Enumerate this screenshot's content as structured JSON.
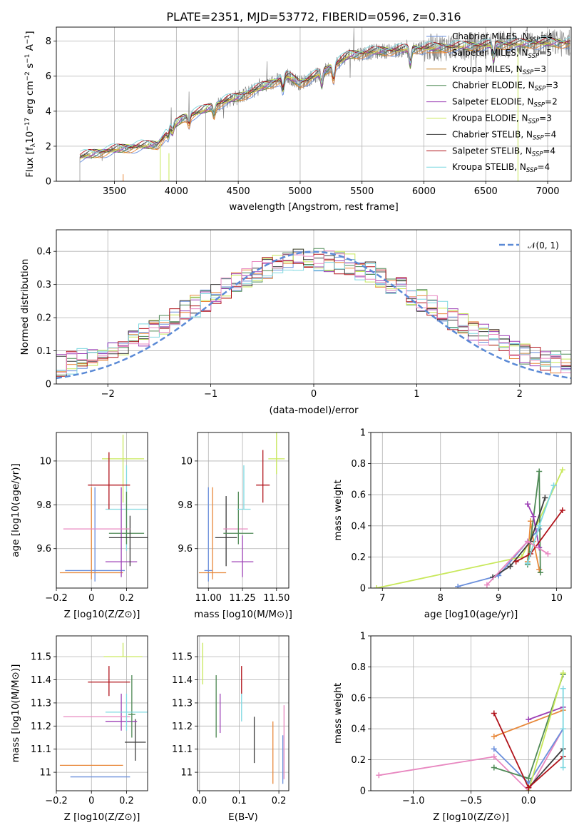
{
  "colors": {
    "Chabrier MILES": "#6a8fdc",
    "Salpeter MILES": "#e8883a",
    "Kroupa MILES": "#c8862e",
    "Chabrier ELODIE": "#4f8a56",
    "Salpeter ELODIE": "#9c3fb5",
    "Kroupa ELODIE": "#c8e85a",
    "Chabrier STELIB": "#3c3c3c",
    "Salpeter STELIB": "#b0121a",
    "Kroupa STELIB": "#7fd8e0",
    "pink": "#e887c0",
    "data": "#777777",
    "gaussian": "#5b8ad6"
  },
  "chart_data": [
    {
      "id": "spectrum",
      "type": "line",
      "title": "PLATE=2351, MJD=53772, FIBERID=0596, z=0.316",
      "xlabel": "wavelength [Angstrom, rest frame]",
      "ylabel": "Flux [f$_\\lambda$10$^{-17}$ erg cm$^{-2}$ s$^{-1}$ A$^{-1}$]",
      "ylabel_parts": [
        "Flux [f",
        "λ",
        "10",
        "−17",
        " erg cm",
        "−2",
        " s",
        "−1",
        " A",
        "−1",
        "]"
      ],
      "xlim": [
        3030,
        7190
      ],
      "ylim": [
        0,
        8.8
      ],
      "xticks": [
        3500,
        4000,
        4500,
        5000,
        5500,
        6000,
        6500,
        7000
      ],
      "yticks": [
        0,
        2,
        4,
        6,
        8
      ],
      "continuum_x": [
        3220,
        3350,
        3500,
        3700,
        3850,
        3950,
        4050,
        4200,
        4300,
        4400,
        4500,
        4700,
        4900,
        5000,
        5200,
        5400,
        5600,
        5800,
        6000,
        6300,
        6600,
        7000
      ],
      "continuum_y": [
        1.4,
        1.6,
        1.8,
        2.0,
        2.1,
        3.0,
        3.6,
        4.0,
        4.3,
        4.6,
        4.8,
        5.4,
        6.0,
        5.6,
        6.3,
        7.2,
        7.4,
        7.5,
        7.6,
        7.7,
        7.8,
        7.9
      ],
      "legend": [
        {
          "label": "Chabrier MILES, N",
          "sub": "SSP",
          "n": "=4",
          "key": "Chabrier MILES"
        },
        {
          "label": "Salpeter MILES, N",
          "sub": "SSP",
          "n": "=5",
          "key": "Salpeter MILES"
        },
        {
          "label": "Kroupa MILES, N",
          "sub": "SSP",
          "n": "=3",
          "key": "Kroupa MILES"
        },
        {
          "label": "Chabrier ELODIE, N",
          "sub": "SSP",
          "n": "=3",
          "key": "Chabrier ELODIE"
        },
        {
          "label": "Salpeter ELODIE, N",
          "sub": "SSP",
          "n": "=2",
          "key": "Salpeter ELODIE"
        },
        {
          "label": "Kroupa ELODIE, N",
          "sub": "SSP",
          "n": "=3",
          "key": "Kroupa ELODIE"
        },
        {
          "label": "Chabrier STELIB, N",
          "sub": "SSP",
          "n": "=4",
          "key": "Chabrier STELIB"
        },
        {
          "label": "Salpeter STELIB, N",
          "sub": "SSP",
          "n": "=4",
          "key": "Salpeter STELIB"
        },
        {
          "label": "Kroupa STELIB, N",
          "sub": "SSP",
          "n": "=4",
          "key": "Kroupa STELIB"
        }
      ],
      "legend_placement": "right"
    },
    {
      "id": "residuals",
      "type": "bar",
      "xlabel": "(data-model)/error",
      "ylabel": "Normed distribution",
      "xlim": [
        -2.5,
        2.5
      ],
      "ylim": [
        0,
        0.465
      ],
      "xticks": [
        -2,
        -1,
        0,
        1,
        2
      ],
      "yticks": [
        0.0,
        0.1,
        0.2,
        0.3,
        0.4
      ],
      "bin_width": 0.1,
      "legend": [
        "𝒩(0, 1)"
      ],
      "legend_placement": "top-right",
      "grid": true
    },
    {
      "id": "age_vs_Z",
      "type": "scatter",
      "xlabel": "Z [log10(Z/Z⊙)]",
      "ylabel": "age  [log10(age/yr)]",
      "xlim": [
        -0.2,
        0.32
      ],
      "ylim": [
        9.42,
        10.13
      ],
      "xticks": [
        -0.2,
        0.0,
        0.2
      ],
      "yticks": [
        9.6,
        9.8,
        10.0
      ],
      "points": [
        {
          "key": "Chabrier MILES",
          "x": 0.02,
          "xerr": 0.17,
          "y": 9.5,
          "yerr": [
            0.05,
            0.38
          ]
        },
        {
          "key": "Salpeter MILES",
          "x": 0.0,
          "xerr": 0.18,
          "y": 9.49,
          "yerr": [
            0.03,
            0.39
          ]
        },
        {
          "key": "Kroupa STELIB",
          "x": 0.2,
          "xerr": 0.12,
          "y": 9.78,
          "yerr": [
            0.19,
            0.2
          ]
        },
        {
          "key": "Chabrier ELODIE",
          "x": 0.2,
          "xerr": 0.1,
          "y": 9.67,
          "yerr": [
            0.05,
            0.19
          ]
        },
        {
          "key": "Salpeter ELODIE",
          "x": 0.17,
          "xerr": 0.09,
          "y": 9.54,
          "yerr": [
            0.07,
            0.34
          ]
        },
        {
          "key": "Kroupa ELODIE",
          "x": 0.18,
          "xerr": 0.12,
          "y": 10.01,
          "yerr": [
            0.2,
            0.11
          ]
        },
        {
          "key": "Chabrier STELIB",
          "x": 0.22,
          "xerr": 0.12,
          "y": 9.65,
          "yerr": [
            0.13,
            0.1
          ]
        },
        {
          "key": "Salpeter STELIB",
          "x": 0.1,
          "xerr": 0.12,
          "y": 9.89,
          "yerr": [
            0.11,
            0.15
          ]
        },
        {
          "key": "pink",
          "x": 0.03,
          "xerr": 0.19,
          "y": 9.69,
          "yerr": [
            0.0,
            0.0
          ]
        }
      ]
    },
    {
      "id": "age_vs_mass",
      "type": "scatter",
      "xlabel": "mass [log10(M/M⊙)]",
      "ylabel": "",
      "xlim": [
        10.92,
        11.59
      ],
      "ylim": [
        9.42,
        10.13
      ],
      "xticks": [
        11.0,
        11.25,
        11.5
      ],
      "xticklabels": [
        "11.00",
        "11.25",
        "11.50"
      ],
      "yticks": [
        9.6,
        9.8,
        10.0
      ],
      "points": [
        {
          "key": "Chabrier MILES",
          "x": 11.0,
          "xerr": 0.03,
          "y": 9.5,
          "yerr": [
            0.05,
            0.38
          ]
        },
        {
          "key": "Salpeter MILES",
          "x": 11.03,
          "xerr": 0.1,
          "y": 9.49,
          "yerr": [
            0.03,
            0.39
          ]
        },
        {
          "key": "Chabrier STELIB",
          "x": 11.13,
          "xerr": 0.08,
          "y": 9.65,
          "yerr": [
            0.13,
            0.19
          ]
        },
        {
          "key": "pink",
          "x": 11.2,
          "xerr": 0.09,
          "y": 9.69,
          "yerr": [
            0.0,
            0.0
          ]
        },
        {
          "key": "Chabrier ELODIE",
          "x": 11.22,
          "xerr": 0.11,
          "y": 9.67,
          "yerr": [
            0.05,
            0.19
          ]
        },
        {
          "key": "Salpeter ELODIE",
          "x": 11.25,
          "xerr": 0.08,
          "y": 9.54,
          "yerr": [
            0.07,
            0.12
          ]
        },
        {
          "key": "Kroupa STELIB",
          "x": 11.26,
          "xerr": 0.05,
          "y": 9.78,
          "yerr": [
            0.0,
            0.2
          ]
        },
        {
          "key": "Salpeter STELIB",
          "x": 11.4,
          "xerr": 0.05,
          "y": 9.89,
          "yerr": [
            0.08,
            0.16
          ]
        },
        {
          "key": "Kroupa ELODIE",
          "x": 11.5,
          "xerr": 0.06,
          "y": 10.01,
          "yerr": [
            0.07,
            0.12
          ]
        }
      ]
    },
    {
      "id": "weight_vs_age",
      "type": "line",
      "xlabel": "age  [log10(age/yr)]",
      "ylabel": "mass weight",
      "xlim": [
        6.8,
        10.25
      ],
      "ylim": [
        0,
        1.0
      ],
      "xticks": [
        7,
        8,
        9,
        10
      ],
      "yticks": [
        0.0,
        0.2,
        0.4,
        0.6,
        0.8,
        1.0
      ],
      "series": [
        {
          "key": "Chabrier MILES",
          "x": [
            8.3,
            9.0,
            9.5,
            9.7
          ],
          "y": [
            0.01,
            0.08,
            0.3,
            0.38
          ]
        },
        {
          "key": "Salpeter MILES",
          "x": [
            9.5,
            9.55,
            9.6,
            9.7
          ],
          "y": [
            0.17,
            0.43,
            0.3,
            0.12
          ]
        },
        {
          "key": "Kroupa ELODIE",
          "x": [
            6.9,
            9.4,
            10.1
          ],
          "y": [
            0.0,
            0.2,
            0.76
          ]
        },
        {
          "key": "Chabrier ELODIE",
          "x": [
            9.5,
            9.7,
            9.72
          ],
          "y": [
            0.15,
            0.75,
            0.1
          ]
        },
        {
          "key": "Salpeter ELODIE",
          "x": [
            9.5,
            9.6,
            9.7
          ],
          "y": [
            0.54,
            0.46,
            0.26
          ]
        },
        {
          "key": "Chabrier STELIB",
          "x": [
            8.9,
            9.2,
            9.55,
            9.8
          ],
          "y": [
            0.07,
            0.14,
            0.3,
            0.58
          ]
        },
        {
          "key": "Salpeter STELIB",
          "x": [
            9.3,
            9.55,
            10.1
          ],
          "y": [
            0.17,
            0.22,
            0.5
          ]
        },
        {
          "key": "Kroupa STELIB",
          "x": [
            9.5,
            9.7,
            9.95
          ],
          "y": [
            0.16,
            0.4,
            0.66
          ]
        },
        {
          "key": "pink",
          "x": [
            8.8,
            9.5,
            9.85
          ],
          "y": [
            0.02,
            0.3,
            0.22
          ]
        }
      ]
    },
    {
      "id": "mass_vs_Z",
      "type": "scatter",
      "xlabel": "Z [log10(Z/Z⊙)]",
      "ylabel": "mass [log10(M/M⊙)]",
      "xlim": [
        -0.2,
        0.32
      ],
      "ylim": [
        10.92,
        11.59
      ],
      "xticks": [
        -0.2,
        0.0,
        0.2
      ],
      "yticks": [
        11.0,
        11.1,
        11.2,
        11.3,
        11.4,
        11.5
      ],
      "points": [
        {
          "key": "Chabrier MILES",
          "x": 0.05,
          "xerr": 0.17,
          "y": 10.98,
          "yerr": [
            0.0,
            0.0
          ]
        },
        {
          "key": "Salpeter MILES",
          "x": 0.0,
          "xerr": 0.18,
          "y": 11.03,
          "yerr": [
            0.0,
            0.0
          ]
        },
        {
          "key": "Chabrier STELIB",
          "x": 0.25,
          "xerr": 0.06,
          "y": 11.13,
          "yerr": [
            0.08,
            0.1
          ]
        },
        {
          "key": "Salpeter ELODIE",
          "x": 0.17,
          "xerr": 0.09,
          "y": 11.22,
          "yerr": [
            0.04,
            0.12
          ]
        },
        {
          "key": "pink",
          "x": 0.03,
          "xerr": 0.19,
          "y": 11.24,
          "yerr": [
            0.0,
            0.0
          ]
        },
        {
          "key": "Chabrier ELODIE",
          "x": 0.23,
          "xerr": 0.02,
          "y": 11.25,
          "yerr": [
            0.1,
            0.17
          ]
        },
        {
          "key": "Kroupa STELIB",
          "x": 0.2,
          "xerr": 0.12,
          "y": 11.26,
          "yerr": [
            0.08,
            0.08
          ]
        },
        {
          "key": "Salpeter STELIB",
          "x": 0.1,
          "xerr": 0.12,
          "y": 11.39,
          "yerr": [
            0.06,
            0.07
          ]
        },
        {
          "key": "Kroupa ELODIE",
          "x": 0.18,
          "xerr": 0.11,
          "y": 11.5,
          "yerr": [
            0.0,
            0.06
          ]
        }
      ]
    },
    {
      "id": "mass_vs_EBV",
      "type": "scatter",
      "xlabel": "E(B-V)",
      "ylabel": "",
      "xlim": [
        -0.005,
        0.225
      ],
      "ylim": [
        10.92,
        11.59
      ],
      "xticks": [
        0.0,
        0.1,
        0.2
      ],
      "xticklabels": [
        "0.0",
        "0.1",
        "0.2"
      ],
      "yticks": [
        11.0,
        11.1,
        11.2,
        11.3,
        11.4,
        11.5
      ],
      "points": [
        {
          "key": "Kroupa ELODIE",
          "x": 0.008,
          "y": 11.48,
          "yerr": [
            0.1,
            0.08
          ]
        },
        {
          "key": "Chabrier ELODIE",
          "x": 0.042,
          "y": 11.29,
          "yerr": [
            0.14,
            0.13
          ]
        },
        {
          "key": "Salpeter ELODIE",
          "x": 0.052,
          "y": 11.25,
          "yerr": [
            0.08,
            0.09
          ]
        },
        {
          "key": "Salpeter STELIB",
          "x": 0.106,
          "y": 11.4,
          "yerr": [
            0.06,
            0.06
          ]
        },
        {
          "key": "Kroupa STELIB",
          "x": 0.106,
          "y": 11.28,
          "yerr": [
            0.06,
            0.06
          ]
        },
        {
          "key": "Chabrier STELIB",
          "x": 0.138,
          "y": 11.12,
          "yerr": [
            0.08,
            0.12
          ]
        },
        {
          "key": "Salpeter MILES",
          "x": 0.185,
          "y": 11.05,
          "yerr": [
            0.1,
            0.17
          ]
        },
        {
          "key": "Chabrier MILES",
          "x": 0.21,
          "y": 11.03,
          "yerr": [
            0.08,
            0.13
          ]
        },
        {
          "key": "pink",
          "x": 0.213,
          "y": 11.12,
          "yerr": [
            0.15,
            0.17
          ]
        }
      ]
    },
    {
      "id": "weight_vs_Z",
      "type": "line",
      "xlabel": "Z [log10(Z/Z⊙)]",
      "ylabel": "mass weight",
      "xlim": [
        -1.37,
        0.37
      ],
      "ylim": [
        0,
        1.0
      ],
      "xticks": [
        -1.0,
        -0.5,
        0.0
      ],
      "xticklabels": [
        "−1.0",
        "−0.5",
        "0.0"
      ],
      "yticks": [
        0.0,
        0.2,
        0.4,
        0.6,
        0.8,
        1.0
      ],
      "series": [
        {
          "key": "pink",
          "x": [
            -1.3,
            -0.3,
            0.0,
            0.3
          ],
          "y": [
            0.1,
            0.22,
            0.0,
            0.4
          ]
        },
        {
          "key": "Chabrier MILES",
          "x": [
            -0.3,
            0.0,
            0.3
          ],
          "y": [
            0.27,
            0.05,
            0.4
          ]
        },
        {
          "key": "Salpeter MILES",
          "x": [
            -0.3,
            0.3
          ],
          "y": [
            0.35,
            0.52
          ]
        },
        {
          "key": "Chabrier ELODIE",
          "x": [
            -0.3,
            0.0,
            0.3
          ],
          "y": [
            0.15,
            0.08,
            0.75
          ]
        },
        {
          "key": "Salpeter ELODIE",
          "x": [
            0.0,
            0.3
          ],
          "y": [
            0.46,
            0.54
          ]
        },
        {
          "key": "Kroupa ELODIE",
          "x": [
            0.0,
            0.3
          ],
          "y": [
            0.0,
            0.76
          ]
        },
        {
          "key": "Chabrier STELIB",
          "x": [
            0.0,
            0.3
          ],
          "y": [
            0.02,
            0.27
          ]
        },
        {
          "key": "Salpeter STELIB",
          "x": [
            -0.3,
            0.0,
            0.3
          ],
          "y": [
            0.5,
            0.02,
            0.22
          ]
        },
        {
          "key": "Kroupa STELIB",
          "x": [
            0.3,
            0.3,
            0.3
          ],
          "y": [
            0.66,
            0.4,
            0.15
          ]
        }
      ]
    }
  ]
}
